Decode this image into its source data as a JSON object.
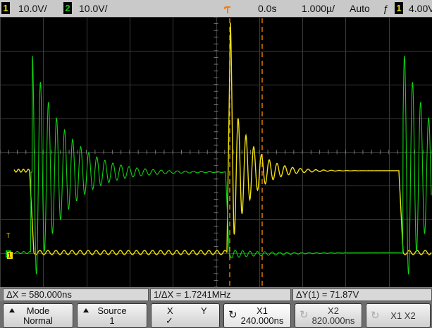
{
  "topbar": {
    "ch1_number": "1",
    "ch1_scale": "10.0V/",
    "ch2_number": "2",
    "ch2_scale": "10.0V/",
    "time_delay": "0.0s",
    "time_base": "1.000µ/",
    "trigger_mode": "Auto",
    "trigger_slope_symbol": "ƒ",
    "trigger_source": "1",
    "trigger_level": "4.00V",
    "ch1_color": "#f0e010",
    "ch2_color": "#10d010"
  },
  "screen": {
    "ch1_marker": "1",
    "ch2_marker": "2",
    "trigger_level_marker": "T"
  },
  "measurements": {
    "delta_x": "ΔX = 580.000ns",
    "inv_delta_x": "1/ΔX = 1.7241MHz",
    "delta_y": "ΔY(1) = 71.87V"
  },
  "softkeys": {
    "mode_label": "Mode",
    "mode_value": "Normal",
    "source_label": "Source",
    "source_value": "1",
    "x_label": "X",
    "y_label": "Y",
    "xy_check": "✓",
    "x1_label": "X1",
    "x1_value": "240.000ns",
    "x2_label": "X2",
    "x2_value": "820.000ns",
    "x1x2_label": "X1 X2"
  }
}
